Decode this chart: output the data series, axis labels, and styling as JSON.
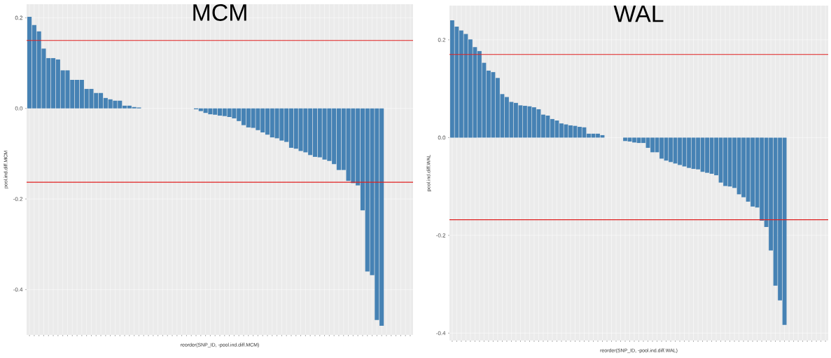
{
  "chart_data": [
    {
      "type": "bar",
      "title": "MCM",
      "xlabel": "reorder(SNP_ID, -pool.ind.diff.MCM)",
      "ylabel": "pool.ind.diff.MCM",
      "color": "#4682b4",
      "categories": [
        null,
        null,
        null,
        null,
        null,
        null,
        null,
        null,
        null,
        null,
        null,
        null,
        null,
        null,
        null,
        null,
        null,
        null,
        null,
        null,
        null,
        null,
        null,
        null,
        null,
        null,
        null,
        null,
        null,
        null,
        null,
        null,
        null,
        null,
        null,
        null,
        null,
        null,
        null,
        null,
        null,
        null,
        null,
        null,
        null,
        null,
        null,
        null,
        null,
        null,
        null,
        null,
        null,
        null,
        null,
        null,
        null,
        null,
        null,
        null,
        null,
        null,
        null,
        null,
        null,
        null,
        null,
        null,
        null,
        null,
        null,
        null,
        null,
        null,
        null,
        null,
        null,
        null,
        null,
        null,
        null
      ],
      "values": [
        0.202,
        0.184,
        0.17,
        0.132,
        0.111,
        0.111,
        0.108,
        0.084,
        0.084,
        0.063,
        0.063,
        0.063,
        0.043,
        0.043,
        0.034,
        0.034,
        0.023,
        0.02,
        0.017,
        0.017,
        0.006,
        0.006,
        0.003,
        0.002,
        null,
        null,
        null,
        null,
        null,
        null,
        null,
        null,
        null,
        null,
        null,
        -0.002,
        -0.006,
        -0.01,
        -0.013,
        -0.014,
        -0.016,
        -0.017,
        -0.019,
        -0.022,
        -0.028,
        -0.037,
        -0.042,
        -0.043,
        -0.048,
        -0.053,
        -0.058,
        -0.064,
        -0.066,
        -0.071,
        -0.074,
        -0.087,
        -0.089,
        -0.094,
        -0.097,
        -0.103,
        -0.107,
        -0.108,
        -0.113,
        -0.116,
        -0.123,
        -0.136,
        -0.136,
        -0.16,
        -0.165,
        -0.17,
        -0.225,
        -0.36,
        -0.368,
        -0.467,
        -0.48,
        null,
        null,
        null,
        null,
        null,
        null
      ],
      "ylim": [
        -0.5,
        0.23
      ],
      "yticks": [
        -0.4,
        -0.2,
        {
          "value": 0,
          "label": "0.0"
        },
        0.2
      ],
      "ref_lines": [
        {
          "axis": "y",
          "value": 0.15,
          "color": "#e02020"
        },
        {
          "axis": "y",
          "value": -0.163,
          "color": "#e02020"
        }
      ],
      "grid": true,
      "tick_labels": "y"
    },
    {
      "type": "bar",
      "title": "WAL",
      "xlabel": "reorder(SNP_ID, -pool.ind.diff.WAL)",
      "ylabel": "pool.ind.diff.WAL",
      "color": "#4682b4",
      "categories": [
        null,
        null,
        null,
        null,
        null,
        null,
        null,
        null,
        null,
        null,
        null,
        null,
        null,
        null,
        null,
        null,
        null,
        null,
        null,
        null,
        null,
        null,
        null,
        null,
        null,
        null,
        null,
        null,
        null,
        null,
        null,
        null,
        null,
        null,
        null,
        null,
        null,
        null,
        null,
        null,
        null,
        null,
        null,
        null,
        null,
        null,
        null,
        null,
        null,
        null,
        null,
        null,
        null,
        null,
        null,
        null,
        null,
        null,
        null,
        null,
        null,
        null,
        null,
        null,
        null,
        null,
        null,
        null,
        null,
        null,
        null,
        null,
        null,
        null,
        null,
        null,
        null,
        null,
        null,
        null,
        null,
        null,
        null
      ],
      "values": [
        0.24,
        0.227,
        0.219,
        0.212,
        0.201,
        0.185,
        0.177,
        0.153,
        0.137,
        0.134,
        0.122,
        0.089,
        0.083,
        0.073,
        0.071,
        0.066,
        0.065,
        0.064,
        0.062,
        0.058,
        0.047,
        0.045,
        0.038,
        0.035,
        0.029,
        0.027,
        0.025,
        0.024,
        0.022,
        0.021,
        0.008,
        0.008,
        0.008,
        0.005,
        null,
        null,
        null,
        null,
        -0.007,
        -0.008,
        -0.01,
        -0.011,
        -0.011,
        -0.021,
        -0.03,
        -0.03,
        -0.043,
        -0.047,
        -0.05,
        -0.053,
        -0.056,
        -0.059,
        -0.062,
        -0.064,
        -0.065,
        -0.07,
        -0.072,
        -0.074,
        -0.077,
        -0.092,
        -0.099,
        -0.1,
        -0.103,
        -0.116,
        -0.122,
        -0.131,
        -0.141,
        -0.143,
        -0.17,
        -0.183,
        -0.231,
        -0.303,
        -0.333,
        -0.383,
        null,
        null,
        null,
        null,
        null,
        null,
        null,
        null,
        null
      ],
      "ylim": [
        -0.415,
        0.27
      ],
      "yticks": [
        -0.4,
        -0.2,
        {
          "value": 0,
          "label": "0.0"
        },
        0.2
      ],
      "ref_lines": [
        {
          "axis": "y",
          "value": 0.17,
          "color": "#e02020"
        },
        {
          "axis": "y",
          "value": -0.168,
          "color": "#e02020"
        }
      ],
      "grid": true,
      "tick_labels": "y"
    }
  ]
}
